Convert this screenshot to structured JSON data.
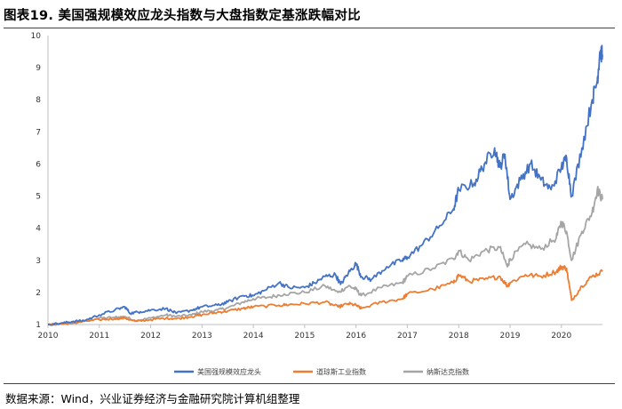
{
  "title": "图表19. 美国强规模效应龙头指数与大盘指数定基涨跌幅对比",
  "source": "数据来源：Wind，兴业证券经济与金融研究院计算机组整理",
  "chart_data": {
    "type": "line",
    "title": "图表19. 美国强规模效应龙头指数与大盘指数定基涨跌幅对比",
    "xlabel": "",
    "ylabel": "",
    "xlim": [
      2010,
      2020.8
    ],
    "ylim": [
      1,
      10
    ],
    "x_ticks": [
      "2010",
      "2011",
      "2012",
      "2013",
      "2014",
      "2015",
      "2016",
      "2017",
      "2018",
      "2019",
      "2020"
    ],
    "y_ticks": [
      1,
      2,
      3,
      4,
      5,
      6,
      7,
      8,
      9,
      10
    ],
    "grid": false,
    "legend_position": "bottom",
    "series": [
      {
        "name": "美国强规模效应龙头",
        "color": "#4472C4",
        "x": [
          2010,
          2010.3,
          2010.5,
          2010.7,
          2011,
          2011.3,
          2011.5,
          2011.6,
          2011.8,
          2012,
          2012.3,
          2012.5,
          2012.8,
          2013,
          2013.3,
          2013.5,
          2013.8,
          2014,
          2014.2,
          2014.5,
          2014.7,
          2015,
          2015.2,
          2015.4,
          2015.6,
          2015.7,
          2015.85,
          2016,
          2016.1,
          2016.3,
          2016.6,
          2016.9,
          2017,
          2017.3,
          2017.6,
          2017.9,
          2018,
          2018.3,
          2018.5,
          2018.7,
          2018.8,
          2018.9,
          2019,
          2019.2,
          2019.4,
          2019.6,
          2019.8,
          2020,
          2020.1,
          2020.2,
          2020.4,
          2020.6,
          2020.7,
          2020.75,
          2020.8
        ],
        "y": [
          1.0,
          1.05,
          1.1,
          1.12,
          1.3,
          1.45,
          1.55,
          1.35,
          1.4,
          1.45,
          1.5,
          1.35,
          1.45,
          1.55,
          1.6,
          1.7,
          1.9,
          1.9,
          2.05,
          2.3,
          2.15,
          2.15,
          2.3,
          2.5,
          2.55,
          2.25,
          2.6,
          2.9,
          2.5,
          2.4,
          2.8,
          3.0,
          3.1,
          3.5,
          4.0,
          4.6,
          5.2,
          5.4,
          6.0,
          6.5,
          5.9,
          6.3,
          4.9,
          5.5,
          6.0,
          5.5,
          5.2,
          5.9,
          6.2,
          5.0,
          6.5,
          8.0,
          8.6,
          9.5,
          9.4
        ]
      },
      {
        "name": "道琼斯工业指数",
        "color": "#ED7D31",
        "x": [
          2010,
          2010.3,
          2010.5,
          2010.7,
          2011,
          2011.3,
          2011.5,
          2011.7,
          2012,
          2012.3,
          2012.5,
          2012.8,
          2013,
          2013.3,
          2013.5,
          2013.8,
          2014,
          2014.5,
          2014.7,
          2015,
          2015.4,
          2015.65,
          2015.85,
          2016,
          2016.1,
          2016.5,
          2016.9,
          2017,
          2017.5,
          2017.9,
          2018,
          2018.2,
          2018.5,
          2018.8,
          2018.95,
          2019,
          2019.3,
          2019.6,
          2019.9,
          2020,
          2020.1,
          2020.2,
          2020.4,
          2020.6,
          2020.8
        ],
        "y": [
          1.0,
          1.02,
          1.05,
          1.1,
          1.15,
          1.18,
          1.2,
          1.1,
          1.15,
          1.2,
          1.18,
          1.25,
          1.3,
          1.38,
          1.42,
          1.5,
          1.55,
          1.6,
          1.62,
          1.65,
          1.7,
          1.55,
          1.65,
          1.6,
          1.5,
          1.7,
          1.8,
          1.95,
          2.1,
          2.3,
          2.55,
          2.35,
          2.4,
          2.5,
          2.2,
          2.3,
          2.55,
          2.5,
          2.65,
          2.8,
          2.75,
          1.75,
          2.2,
          2.5,
          2.65
        ]
      },
      {
        "name": "纳斯达克指数",
        "color": "#A5A5A5",
        "x": [
          2010,
          2010.3,
          2010.5,
          2010.7,
          2011,
          2011.3,
          2011.5,
          2011.7,
          2012,
          2012.3,
          2012.5,
          2012.8,
          2013,
          2013.3,
          2013.5,
          2013.8,
          2014,
          2014.3,
          2014.6,
          2015,
          2015.4,
          2015.65,
          2015.85,
          2016,
          2016.1,
          2016.5,
          2016.9,
          2017,
          2017.5,
          2017.9,
          2018,
          2018.2,
          2018.5,
          2018.8,
          2018.95,
          2019,
          2019.3,
          2019.6,
          2019.9,
          2020,
          2020.1,
          2020.2,
          2020.4,
          2020.6,
          2020.7,
          2020.8
        ],
        "y": [
          1.0,
          1.02,
          1.05,
          1.1,
          1.2,
          1.22,
          1.25,
          1.12,
          1.2,
          1.3,
          1.25,
          1.3,
          1.4,
          1.45,
          1.52,
          1.7,
          1.8,
          1.85,
          1.95,
          2.0,
          2.2,
          2.0,
          2.2,
          2.1,
          1.9,
          2.15,
          2.3,
          2.5,
          2.75,
          3.05,
          3.3,
          3.0,
          3.3,
          3.4,
          2.8,
          3.05,
          3.5,
          3.35,
          3.7,
          4.2,
          3.9,
          3.0,
          3.9,
          4.5,
          5.2,
          4.9
        ]
      }
    ]
  }
}
